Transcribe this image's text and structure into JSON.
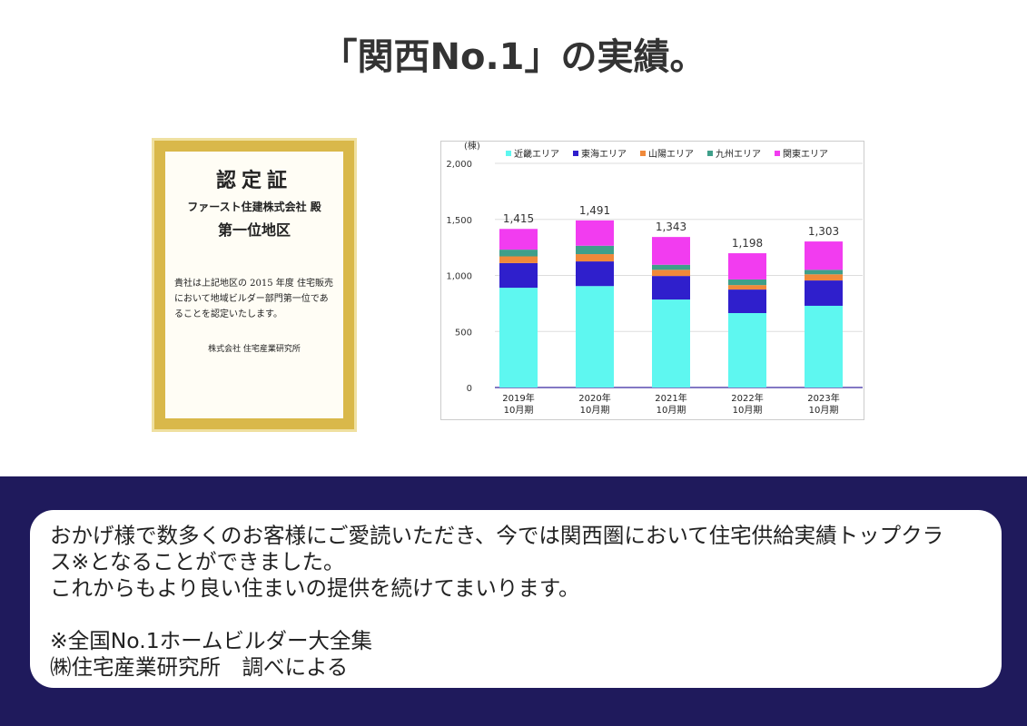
{
  "header": {
    "title": "「関西No.1」の実績。"
  },
  "certificate": {
    "title": "認定証",
    "recipient": "ファースト住建株式会社 殿",
    "heading": "第一位地区",
    "statement": "貴社は上記地区の 2015 年度 住宅販売において地域ビルダー部門第一位であることを認定いたします。",
    "issuer": "株式会社 住宅産業研究所"
  },
  "chart_data": {
    "type": "stacked-bar",
    "y_unit": "(棟)",
    "categories": [
      [
        "2019年",
        "10月期"
      ],
      [
        "2020年",
        "10月期"
      ],
      [
        "2021年",
        "10月期"
      ],
      [
        "2022年",
        "10月期"
      ],
      [
        "2023年",
        "10月期"
      ]
    ],
    "series": [
      {
        "name": "近畿エリア",
        "color": "#5ef7f0",
        "values": [
          890,
          905,
          785,
          664,
          729
        ]
      },
      {
        "name": "東海エリア",
        "color": "#2f1fcc",
        "values": [
          220,
          220,
          210,
          210,
          226
        ]
      },
      {
        "name": "山陽エリア",
        "color": "#f0893a",
        "values": [
          60,
          65,
          55,
          40,
          55
        ]
      },
      {
        "name": "九州エリア",
        "color": "#3f9f8a",
        "values": [
          60,
          75,
          45,
          50,
          40
        ]
      },
      {
        "name": "関東エリア",
        "color": "#f23cf0",
        "values": [
          185,
          226,
          248,
          234,
          253
        ]
      }
    ],
    "totals": [
      1415,
      1491,
      1343,
      1198,
      1303
    ],
    "total_labels": [
      "1,415",
      "1,491",
      "1,343",
      "1,198",
      "1,303"
    ],
    "ylim": [
      0,
      2000
    ],
    "yticks": [
      0,
      500,
      {
        "value": 1000,
        "label": "1,000"
      },
      {
        "value": 1500,
        "label": "1,500"
      },
      {
        "value": 2000,
        "label": "2,000"
      }
    ]
  },
  "message": {
    "paragraphs": [
      "おかげ様で数多くのお客様にご愛読いただき、今では関西圏において住宅供給実績トップクラス※となることができました。",
      "これからもより良い住まいの提供を続けてまいります。"
    ],
    "notes": [
      "※全国No.1ホームビルダー大全集",
      "㈱住宅産業研究所　調べによる"
    ]
  }
}
